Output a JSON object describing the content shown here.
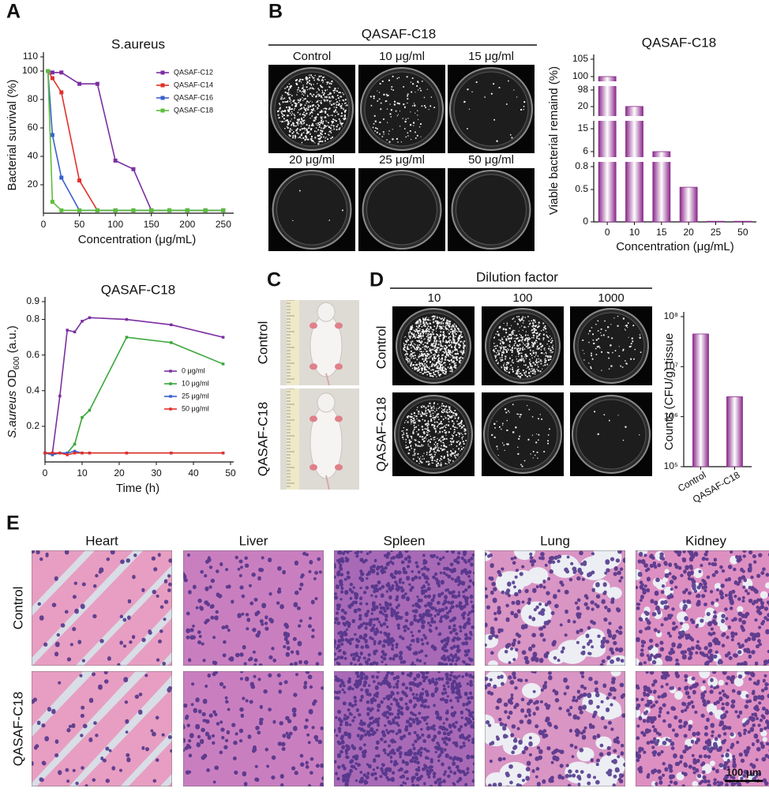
{
  "panel_labels": [
    "A",
    "B",
    "C",
    "D",
    "E"
  ],
  "chart_data": [
    {
      "type": "line",
      "title": "S.aureus",
      "x_label": "Concentration (μg/mL)",
      "y_label": "Bacterial survival (%)",
      "xlim": [
        0,
        260
      ],
      "xticks": [
        0,
        50,
        100,
        150,
        200,
        250
      ],
      "ylim": [
        0,
        110
      ],
      "yticks": [
        20,
        40,
        60,
        80,
        100,
        110
      ],
      "x": [
        6.25,
        12.5,
        25,
        50,
        75,
        100,
        125,
        150,
        175,
        200,
        225,
        250
      ],
      "series": [
        {
          "name": "QASAF-C12",
          "color": "#7b2fa0",
          "values": [
            100,
            99,
            99,
            91,
            91,
            37,
            31,
            2,
            2,
            2,
            2,
            2
          ]
        },
        {
          "name": "QASAF-C14",
          "color": "#e0302a",
          "values": [
            100,
            95,
            85,
            23,
            2,
            2,
            2,
            2,
            2,
            2,
            2,
            2
          ]
        },
        {
          "name": "QASAF-C16",
          "color": "#3a5fcd",
          "values": [
            100,
            55,
            25,
            2,
            2,
            2,
            2,
            2,
            2,
            2,
            2,
            2
          ]
        },
        {
          "name": "QASAF-C18",
          "color": "#5cbf3a",
          "values": [
            100,
            8,
            2,
            2,
            2,
            2,
            2,
            2,
            2,
            2,
            2,
            2
          ]
        }
      ]
    },
    {
      "type": "line",
      "title": "QASAF-C18",
      "x_label": "Time (h)",
      "y_label": {
        "italic": "S.aureus",
        "text": " OD",
        "sub": "600",
        "unit": " (a.u.)"
      },
      "xlim": [
        0,
        50
      ],
      "xticks": [
        0,
        10,
        20,
        30,
        40,
        50
      ],
      "ylim": [
        0,
        0.9
      ],
      "yticks": [
        0.2,
        0.4,
        0.6,
        0.8,
        0.9
      ],
      "x": [
        0,
        2,
        4,
        6,
        8,
        10,
        12,
        22,
        34,
        48
      ],
      "series": [
        {
          "name": "0 μg/ml",
          "color": "#7b2fa0",
          "values": [
            0.05,
            0.05,
            0.37,
            0.74,
            0.73,
            0.79,
            0.81,
            0.8,
            0.77,
            0.7
          ]
        },
        {
          "name": "10 μg/ml",
          "color": "#3aa63a",
          "values": [
            0.05,
            0.05,
            0.05,
            0.05,
            0.1,
            0.25,
            0.29,
            0.7,
            0.67,
            0.55
          ]
        },
        {
          "name": "25 μg/ml",
          "color": "#3a5fcd",
          "values": [
            0.05,
            0.04,
            0.05,
            0.05,
            0.06,
            0.05,
            0.05,
            0.05,
            0.05,
            0.05
          ]
        },
        {
          "name": "50 μg/ml",
          "color": "#e0302a",
          "values": [
            0.05,
            0.05,
            0.05,
            0.04,
            0.05,
            0.05,
            0.05,
            0.05,
            0.05,
            0.05
          ]
        }
      ]
    },
    {
      "type": "bar",
      "title": "QASAF-C18",
      "x_label": "Concentration (μg/mL)",
      "y_label": "Viable bacterial remaind (%)",
      "categories": [
        "0",
        "10",
        "15",
        "20",
        "25",
        "50"
      ],
      "values": [
        100,
        20.5,
        6,
        0.53,
        0.01,
        0.01
      ],
      "color": "#8b2a8b",
      "ylim": [
        0,
        105
      ],
      "yticks": [
        0,
        0.5,
        0.8,
        6,
        15,
        20,
        98,
        100,
        105
      ],
      "axis_breaks": true
    },
    {
      "type": "bar",
      "y_label": "Counts (CFU/g) tissue",
      "categories": [
        "Control",
        "QASAF-C18"
      ],
      "values": [
        45000000,
        2500000
      ],
      "color": "#8b2a8b",
      "log_scale": true,
      "ylim": [
        100000,
        100000000
      ],
      "yticks": [
        {
          "value": 100000,
          "label": "10⁵"
        },
        {
          "value": 1000000,
          "label": "10⁶"
        },
        {
          "value": 10000000,
          "label": "10⁷"
        },
        {
          "value": 100000000,
          "label": "10⁸"
        }
      ]
    }
  ],
  "plates": {
    "title": "QASAF-C18",
    "labels": [
      "Control",
      "10 μg/ml",
      "15 μg/ml",
      "20 μg/ml",
      "25 μg/ml",
      "50 μg/ml"
    ]
  },
  "mice": {
    "rows": [
      "Control",
      "QASAF-C18"
    ]
  },
  "dilution": {
    "title": "Dilution factor",
    "columns": [
      "10",
      "100",
      "1000"
    ],
    "rows": [
      "Control",
      "QASAF-C18"
    ]
  },
  "histology": {
    "organs": [
      "Heart",
      "Liver",
      "Spleen",
      "Lung",
      "Kidney"
    ],
    "rows": [
      "Control",
      "QASAF-C18"
    ],
    "scale_bar": "100 μm"
  }
}
